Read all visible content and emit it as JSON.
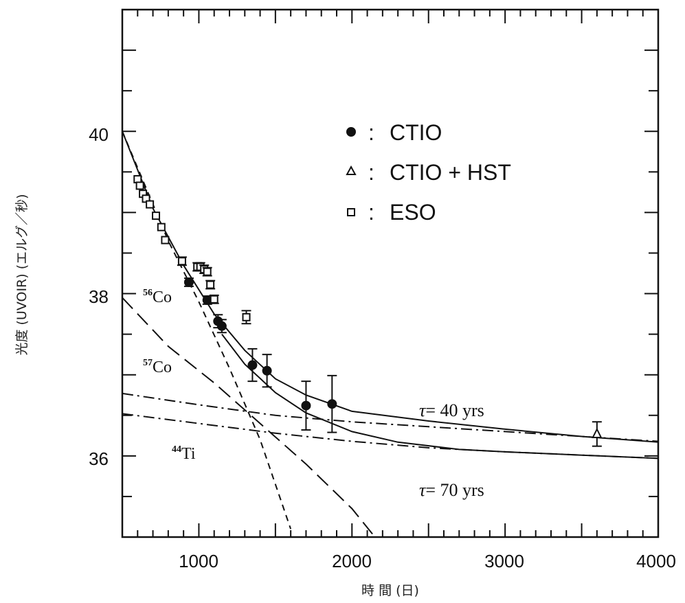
{
  "chart_data": {
    "type": "scatter",
    "xlabel": "時 間 (日)",
    "ylabel": "光度 (UVOIR) (エルグ／秒)",
    "xlim": [
      500,
      4000
    ],
    "ylim": [
      35,
      41.5
    ],
    "x_ticks": [
      1000,
      2000,
      3000,
      4000
    ],
    "y_ticks": [
      36,
      38,
      40
    ],
    "x_tick_labels": [
      "1000",
      "2000",
      "3000",
      "4000"
    ],
    "y_tick_labels": [
      "36",
      "38",
      "40"
    ],
    "legend": [
      {
        "symbol": "●",
        "sep": ":",
        "label": "CTIO",
        "marker": "filled-circle"
      },
      {
        "symbol": "▵",
        "sep": ":",
        "label": "CTIO + HST",
        "marker": "open-triangle"
      },
      {
        "symbol": "▫",
        "sep": ":",
        "label": "ESO",
        "marker": "open-square"
      }
    ],
    "legend_position": "upper-right",
    "isotope_labels": [
      {
        "mass": "56",
        "element": "Co"
      },
      {
        "mass": "57",
        "element": "Co"
      },
      {
        "mass": "44",
        "element": "Ti"
      }
    ],
    "tau_labels": [
      {
        "symbol": "τ",
        "text": "= 40 yrs"
      },
      {
        "symbol": "τ",
        "text": "= 70 yrs"
      }
    ],
    "series": [
      {
        "name": "CTIO",
        "marker": "filled-circle",
        "points": [
          [
            935,
            38.14,
            0.05
          ],
          [
            1055,
            37.92,
            0.05
          ],
          [
            1125,
            37.66,
            0.08
          ],
          [
            1150,
            37.6,
            0.08
          ],
          [
            1350,
            37.12,
            0.2
          ],
          [
            1445,
            37.05,
            0.2
          ],
          [
            1700,
            36.62,
            0.3
          ],
          [
            1870,
            36.64,
            0.35
          ]
        ]
      },
      {
        "name": "CTIO + HST",
        "marker": "open-triangle",
        "points": [
          [
            3600,
            36.27,
            0.15
          ]
        ]
      },
      {
        "name": "ESO",
        "marker": "open-square",
        "points": [
          [
            600,
            39.41,
            0.04
          ],
          [
            615,
            39.33,
            0.04
          ],
          [
            635,
            39.23,
            0.04
          ],
          [
            655,
            39.17,
            0.04
          ],
          [
            680,
            39.1,
            0.04
          ],
          [
            720,
            38.96,
            0.04
          ],
          [
            755,
            38.82,
            0.04
          ],
          [
            780,
            38.66,
            0.04
          ],
          [
            890,
            38.4,
            0.05
          ],
          [
            990,
            38.33,
            0.05
          ],
          [
            1010,
            38.33,
            0.05
          ],
          [
            1035,
            38.3,
            0.05
          ],
          [
            1055,
            38.27,
            0.05
          ],
          [
            1075,
            38.11,
            0.05
          ],
          [
            1100,
            37.93,
            0.05
          ],
          [
            1310,
            37.71,
            0.08
          ]
        ]
      }
    ],
    "curves": [
      {
        "name": "τ = 40 yrs",
        "style": "solid",
        "points": [
          [
            500,
            40.0
          ],
          [
            700,
            39.05
          ],
          [
            900,
            38.35
          ],
          [
            1100,
            37.75
          ],
          [
            1300,
            37.3
          ],
          [
            1500,
            36.95
          ],
          [
            1700,
            36.75
          ],
          [
            2000,
            36.55
          ],
          [
            2500,
            36.43
          ],
          [
            3000,
            36.33
          ],
          [
            3500,
            36.24
          ],
          [
            4000,
            36.17
          ]
        ]
      },
      {
        "name": "τ = 70 yrs",
        "style": "solid",
        "points": [
          [
            1150,
            37.5
          ],
          [
            1300,
            37.13
          ],
          [
            1500,
            36.78
          ],
          [
            1700,
            36.53
          ],
          [
            2000,
            36.3
          ],
          [
            2300,
            36.17
          ],
          [
            2700,
            36.08
          ],
          [
            3000,
            36.05
          ],
          [
            3500,
            36.01
          ],
          [
            4000,
            35.97
          ]
        ]
      },
      {
        "name": "56Co",
        "style": "short-dash",
        "points": [
          [
            500,
            40.0
          ],
          [
            800,
            38.65
          ],
          [
            1000,
            37.9
          ],
          [
            1200,
            37.08
          ],
          [
            1400,
            36.2
          ],
          [
            1600,
            35.1
          ]
        ]
      },
      {
        "name": "57Co",
        "style": "long-dash",
        "points": [
          [
            500,
            37.95
          ],
          [
            800,
            37.35
          ],
          [
            1100,
            36.9
          ],
          [
            1400,
            36.4
          ],
          [
            1700,
            35.9
          ],
          [
            2000,
            35.35
          ],
          [
            2150,
            35.0
          ]
        ]
      },
      {
        "name": "44Ti τ40",
        "style": "dash-dot",
        "points": [
          [
            500,
            36.77
          ],
          [
            1000,
            36.63
          ],
          [
            1500,
            36.5
          ],
          [
            2000,
            36.42
          ],
          [
            2500,
            36.36
          ],
          [
            3000,
            36.3
          ],
          [
            3500,
            36.24
          ],
          [
            4000,
            36.18
          ]
        ]
      },
      {
        "name": "44Ti τ70",
        "style": "dash-dot",
        "points": [
          [
            500,
            36.52
          ],
          [
            1000,
            36.4
          ],
          [
            1500,
            36.28
          ],
          [
            2000,
            36.18
          ],
          [
            2500,
            36.1
          ],
          [
            3000,
            36.05
          ],
          [
            3500,
            36.01
          ],
          [
            4000,
            35.97
          ]
        ]
      }
    ]
  }
}
